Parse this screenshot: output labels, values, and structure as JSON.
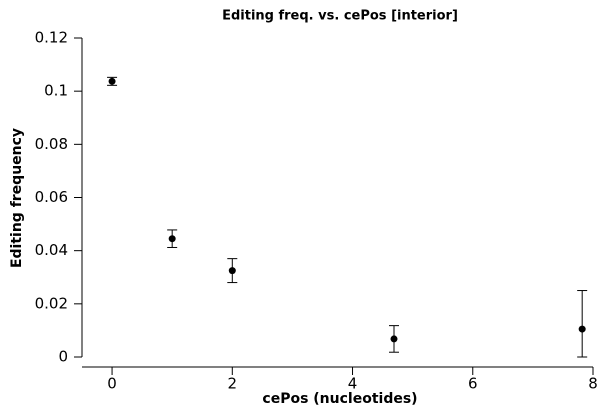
{
  "chart_data": {
    "type": "scatter",
    "title": "Editing freq. vs. cePos [interior]",
    "x_label": "cePos (nucleotides)",
    "y_label": "Editing frequency",
    "x": [
      0,
      1,
      2,
      4.69,
      7.82
    ],
    "series": [
      {
        "color": "#000000",
        "values": [
          0.1037,
          0.0445,
          0.0325,
          0.0068,
          0.0105
        ],
        "errors": [
          0.0015,
          0.0033,
          0.0045,
          0.005,
          0.0145
        ]
      }
    ],
    "xlim": [
      -0.5,
      8
    ],
    "xticks": [
      0,
      2,
      4,
      6,
      8
    ],
    "ylim": [
      0,
      0.12
    ],
    "yticks": [
      0,
      0.02,
      0.04,
      0.06,
      0.08,
      0.1,
      0.12
    ]
  }
}
